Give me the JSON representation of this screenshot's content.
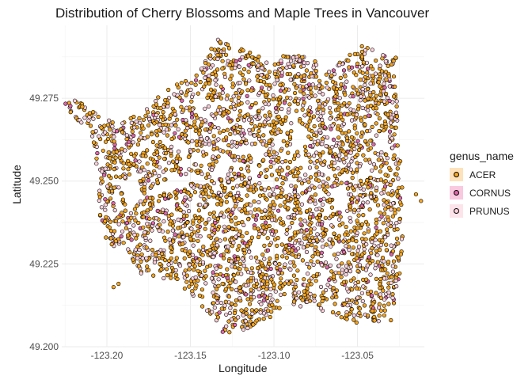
{
  "chart_data": {
    "type": "scatter",
    "title": "Distribution of Cherry Blossoms and Maple Trees in Vancouver",
    "xlabel": "Longitude",
    "ylabel": "Latitude",
    "xlim": [
      -123.227,
      -123.01
    ],
    "ylim": [
      49.2,
      49.297
    ],
    "x_ticks": [
      -123.2,
      -123.15,
      -123.1,
      -123.05
    ],
    "x_tick_labels": [
      "-123.20",
      "-123.15",
      "-123.10",
      "-123.05"
    ],
    "y_ticks": [
      49.2,
      49.225,
      49.25,
      49.275
    ],
    "y_tick_labels": [
      "49.200",
      "49.225",
      "49.250",
      "49.275"
    ],
    "grid": true,
    "legend_position": "right",
    "legend_title": "genus_name",
    "series": [
      {
        "name": "ACER",
        "color": "#f5a623",
        "key_fill": "#fde2bb"
      },
      {
        "name": "CORNUS",
        "color": "#e066a8",
        "key_fill": "#f9c9df"
      },
      {
        "name": "PRUNUS",
        "color": "#ffd1dc",
        "key_fill": "#fde4ea"
      }
    ],
    "region_outline": [
      [
        -123.225,
        49.275
      ],
      [
        -123.215,
        49.274
      ],
      [
        -123.205,
        49.27
      ],
      [
        -123.195,
        49.268
      ],
      [
        -123.18,
        49.27
      ],
      [
        -123.17,
        49.275
      ],
      [
        -123.16,
        49.279
      ],
      [
        -123.148,
        49.281
      ],
      [
        -123.14,
        49.287
      ],
      [
        -123.135,
        49.293
      ],
      [
        -123.12,
        49.29
      ],
      [
        -123.11,
        49.288
      ],
      [
        -123.1,
        49.285
      ],
      [
        -123.092,
        49.289
      ],
      [
        -123.075,
        49.287
      ],
      [
        -123.07,
        49.282
      ],
      [
        -123.055,
        49.288
      ],
      [
        -123.047,
        49.291
      ],
      [
        -123.035,
        49.289
      ],
      [
        -123.027,
        49.288
      ],
      [
        -123.025,
        49.26
      ],
      [
        -123.022,
        49.24
      ],
      [
        -123.025,
        49.22
      ],
      [
        -123.03,
        49.208
      ],
      [
        -123.05,
        49.207
      ],
      [
        -123.07,
        49.21
      ],
      [
        -123.09,
        49.213
      ],
      [
        -123.105,
        49.208
      ],
      [
        -123.118,
        49.205
      ],
      [
        -123.13,
        49.204
      ],
      [
        -123.14,
        49.21
      ],
      [
        -123.148,
        49.215
      ],
      [
        -123.16,
        49.22
      ],
      [
        -123.18,
        49.222
      ],
      [
        -123.19,
        49.228
      ],
      [
        -123.2,
        49.232
      ],
      [
        -123.205,
        49.24
      ],
      [
        -123.205,
        49.25
      ],
      [
        -123.21,
        49.265
      ],
      [
        -123.225,
        49.272
      ]
    ],
    "gaps": [
      {
        "x": -123.185,
        "y": 49.247,
        "r": 0.006
      },
      {
        "x": -123.16,
        "y": 49.25,
        "r": 0.004
      },
      {
        "x": -123.13,
        "y": 49.255,
        "r": 0.004
      },
      {
        "x": -123.11,
        "y": 49.258,
        "r": 0.004
      },
      {
        "x": -123.085,
        "y": 49.263,
        "r": 0.005
      },
      {
        "x": -123.06,
        "y": 49.245,
        "r": 0.005
      },
      {
        "x": -123.11,
        "y": 49.23,
        "r": 0.004
      },
      {
        "x": -123.17,
        "y": 49.232,
        "r": 0.004
      },
      {
        "x": -123.035,
        "y": 49.262,
        "r": 0.004
      },
      {
        "x": -123.145,
        "y": 49.272,
        "r": 0.003
      },
      {
        "x": -123.14,
        "y": 49.214,
        "r": 0.003
      },
      {
        "x": -123.07,
        "y": 49.222,
        "r": 0.003
      }
    ]
  }
}
